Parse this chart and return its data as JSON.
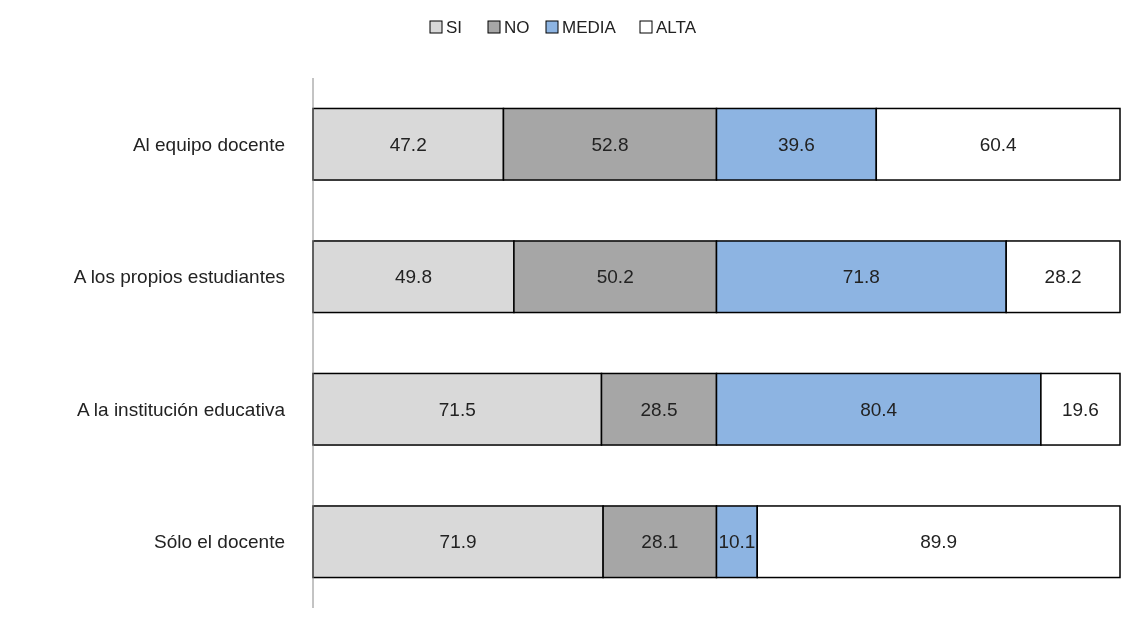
{
  "chart_data": {
    "type": "bar",
    "orientation": "horizontal",
    "stacked": true,
    "data_labels": true,
    "legend": "top",
    "tick_labels": "y",
    "categories": [
      "Al equipo docente",
      "A los propios estudiantes",
      "A la institución educativa",
      "Sólo el docente"
    ],
    "series": [
      {
        "name": "SI",
        "color": "#d9d9d9",
        "values": [
          47.2,
          49.8,
          71.5,
          71.9
        ]
      },
      {
        "name": "NO",
        "color": "#a6a6a6",
        "values": [
          52.8,
          50.2,
          28.5,
          28.1
        ]
      },
      {
        "name": "MEDIA",
        "color": "#8db4e2",
        "values": [
          39.6,
          71.8,
          80.4,
          10.1
        ]
      },
      {
        "name": "ALTA",
        "color": "#ffffff",
        "values": [
          60.4,
          28.2,
          19.6,
          89.9
        ]
      }
    ]
  }
}
